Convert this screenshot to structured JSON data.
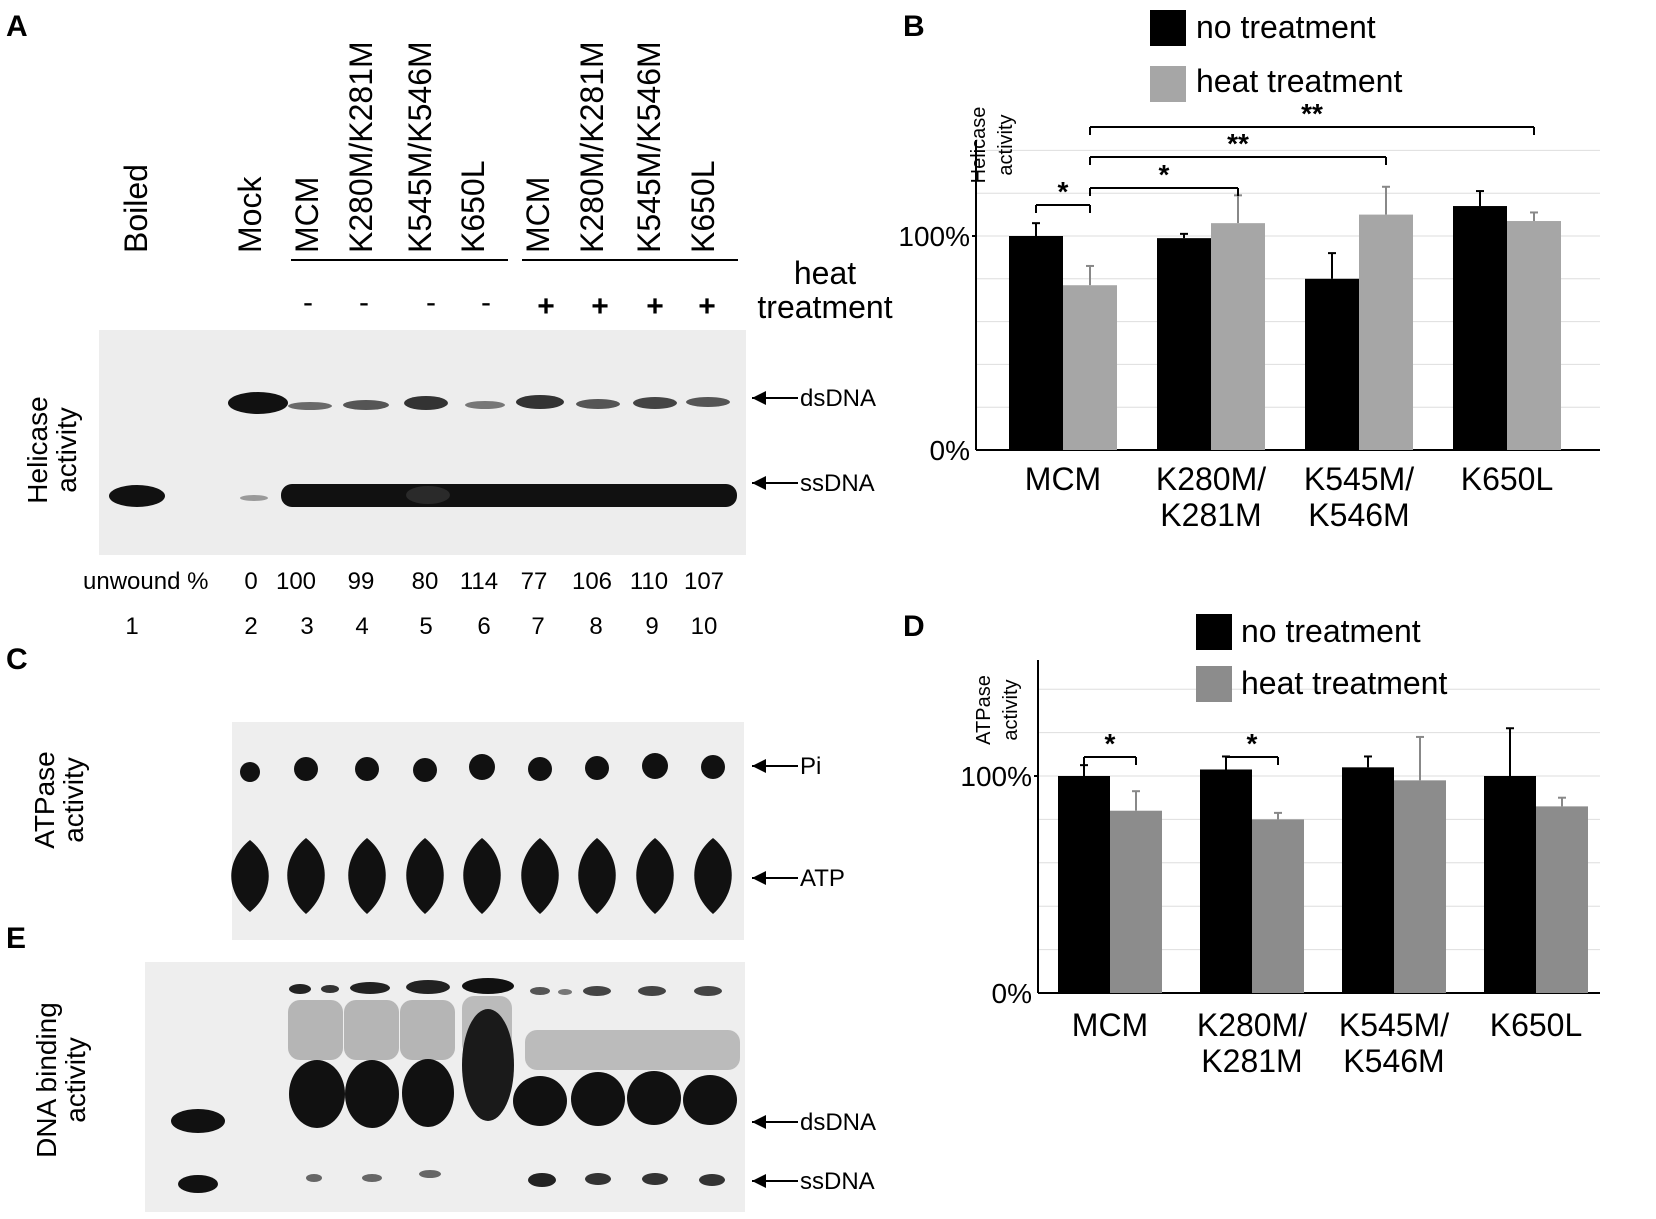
{
  "panels": {
    "A": {
      "letter": "A",
      "lanes": [
        "Boiled",
        "Mock",
        "MCM",
        "K280M/K281M",
        "K545M/K546M",
        "K650L",
        "MCM",
        "K280M/K281M",
        "K545M/K546M",
        "K650L"
      ],
      "treatment_line1": "heat",
      "treatment_line2": "treatment",
      "treatment_signs": [
        "-",
        "-",
        "-",
        "-",
        "+",
        "+",
        "+",
        "+"
      ],
      "ylabel_line1": "Helicase",
      "ylabel_line2": "activity",
      "band_labels": [
        "dsDNA",
        "ssDNA"
      ],
      "unwound_label": "unwound %",
      "unwound_values": [
        "0",
        "100",
        "99",
        "80",
        "114",
        "77",
        "106",
        "110",
        "107"
      ],
      "lane_numbers": [
        "1",
        "2",
        "3",
        "4",
        "5",
        "6",
        "7",
        "8",
        "9",
        "10"
      ]
    },
    "C": {
      "letter": "C",
      "ylabel_line1": "ATPase",
      "ylabel_line2": "activity",
      "spot_labels": [
        "Pi",
        "ATP"
      ]
    },
    "E": {
      "letter": "E",
      "ylabel_line1": "DNA binding",
      "ylabel_line2": "activity",
      "band_labels": [
        "dsDNA",
        "ssDNA"
      ]
    },
    "B": {
      "letter": "B"
    },
    "D": {
      "letter": "D"
    }
  },
  "colors": {
    "no_treatment": "#000000",
    "heat_treatment_B": "#a6a6a6",
    "heat_treatment_D": "#8c8c8c",
    "gel_background": "#eeeeee"
  },
  "chart_data": [
    {
      "panel": "B",
      "type": "bar",
      "ylabel_line1": "Helicase",
      "ylabel_line2": "activity",
      "yticks": [
        "0%",
        "100%"
      ],
      "ylim": [
        0,
        150
      ],
      "grid": true,
      "legend_placement": "top",
      "categories": [
        [
          "MCM"
        ],
        [
          "K280M/",
          "K281M"
        ],
        [
          "K545M/",
          "K546M"
        ],
        [
          "K650L"
        ]
      ],
      "series": [
        {
          "name": "no treatment",
          "values": [
            100,
            99,
            80,
            114
          ],
          "errors": [
            6,
            2,
            12,
            7
          ]
        },
        {
          "name": "heat treatment",
          "values": [
            77,
            106,
            110,
            107
          ],
          "errors": [
            9,
            13,
            13,
            4
          ]
        }
      ],
      "significance": [
        {
          "label": "*",
          "from": [
            0,
            0
          ],
          "to": [
            0,
            1
          ]
        },
        {
          "label": "*",
          "from": [
            0,
            1
          ],
          "to": [
            1,
            1
          ]
        },
        {
          "label": "**",
          "from": [
            0,
            1
          ],
          "to": [
            2,
            1
          ]
        },
        {
          "label": "**",
          "from": [
            0,
            1
          ],
          "to": [
            3,
            1
          ]
        }
      ]
    },
    {
      "panel": "D",
      "type": "bar",
      "ylabel_line1": "ATPase",
      "ylabel_line2": "activity",
      "yticks": [
        "0%",
        "100%"
      ],
      "ylim": [
        0,
        150
      ],
      "grid": true,
      "legend_placement": "top",
      "categories": [
        [
          "MCM"
        ],
        [
          "K280M/",
          "K281M"
        ],
        [
          "K545M/",
          "K546M"
        ],
        [
          "K650L"
        ]
      ],
      "series": [
        {
          "name": "no treatment",
          "values": [
            100,
            103,
            104,
            100
          ],
          "errors": [
            5,
            6,
            5,
            22
          ]
        },
        {
          "name": "heat treatment",
          "values": [
            84,
            80,
            98,
            86
          ],
          "errors": [
            9,
            3,
            20,
            4
          ]
        }
      ],
      "significance": [
        {
          "label": "*",
          "from": [
            0,
            0
          ],
          "to": [
            0,
            1
          ]
        },
        {
          "label": "*",
          "from": [
            1,
            0
          ],
          "to": [
            1,
            1
          ]
        }
      ]
    }
  ]
}
